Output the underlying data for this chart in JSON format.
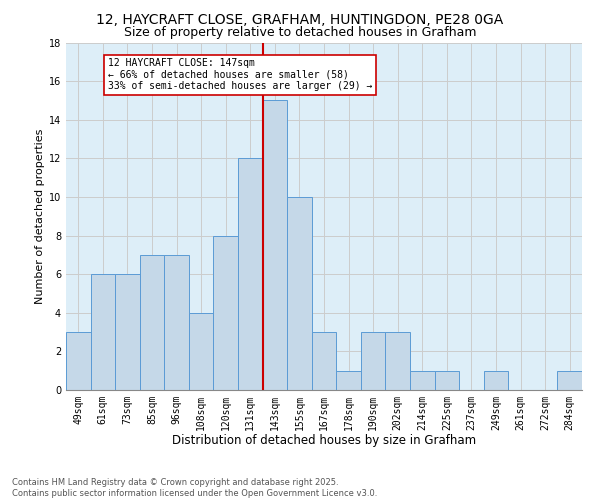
{
  "title": "12, HAYCRAFT CLOSE, GRAFHAM, HUNTINGDON, PE28 0GA",
  "subtitle": "Size of property relative to detached houses in Grafham",
  "xlabel": "Distribution of detached houses by size in Grafham",
  "ylabel": "Number of detached properties",
  "categories": [
    "49sqm",
    "61sqm",
    "73sqm",
    "85sqm",
    "96sqm",
    "108sqm",
    "120sqm",
    "131sqm",
    "143sqm",
    "155sqm",
    "167sqm",
    "178sqm",
    "190sqm",
    "202sqm",
    "214sqm",
    "225sqm",
    "237sqm",
    "249sqm",
    "261sqm",
    "272sqm",
    "284sqm"
  ],
  "values": [
    3,
    6,
    6,
    7,
    7,
    4,
    8,
    12,
    15,
    10,
    3,
    1,
    3,
    3,
    1,
    1,
    0,
    1,
    0,
    0,
    1
  ],
  "bar_color": "#c5d8e8",
  "bar_edge_color": "#5b9bd5",
  "subject_line_color": "#cc0000",
  "annotation_text": "12 HAYCRAFT CLOSE: 147sqm\n← 66% of detached houses are smaller (58)\n33% of semi-detached houses are larger (29) →",
  "annotation_box_color": "#cc0000",
  "ylim": [
    0,
    18
  ],
  "yticks": [
    0,
    2,
    4,
    6,
    8,
    10,
    12,
    14,
    16,
    18
  ],
  "grid_color": "#cccccc",
  "background_color": "#ddeef8",
  "footer_text": "Contains HM Land Registry data © Crown copyright and database right 2025.\nContains public sector information licensed under the Open Government Licence v3.0.",
  "title_fontsize": 10,
  "subtitle_fontsize": 9,
  "xlabel_fontsize": 8.5,
  "ylabel_fontsize": 8,
  "tick_fontsize": 7,
  "annotation_fontsize": 7,
  "footer_fontsize": 6
}
